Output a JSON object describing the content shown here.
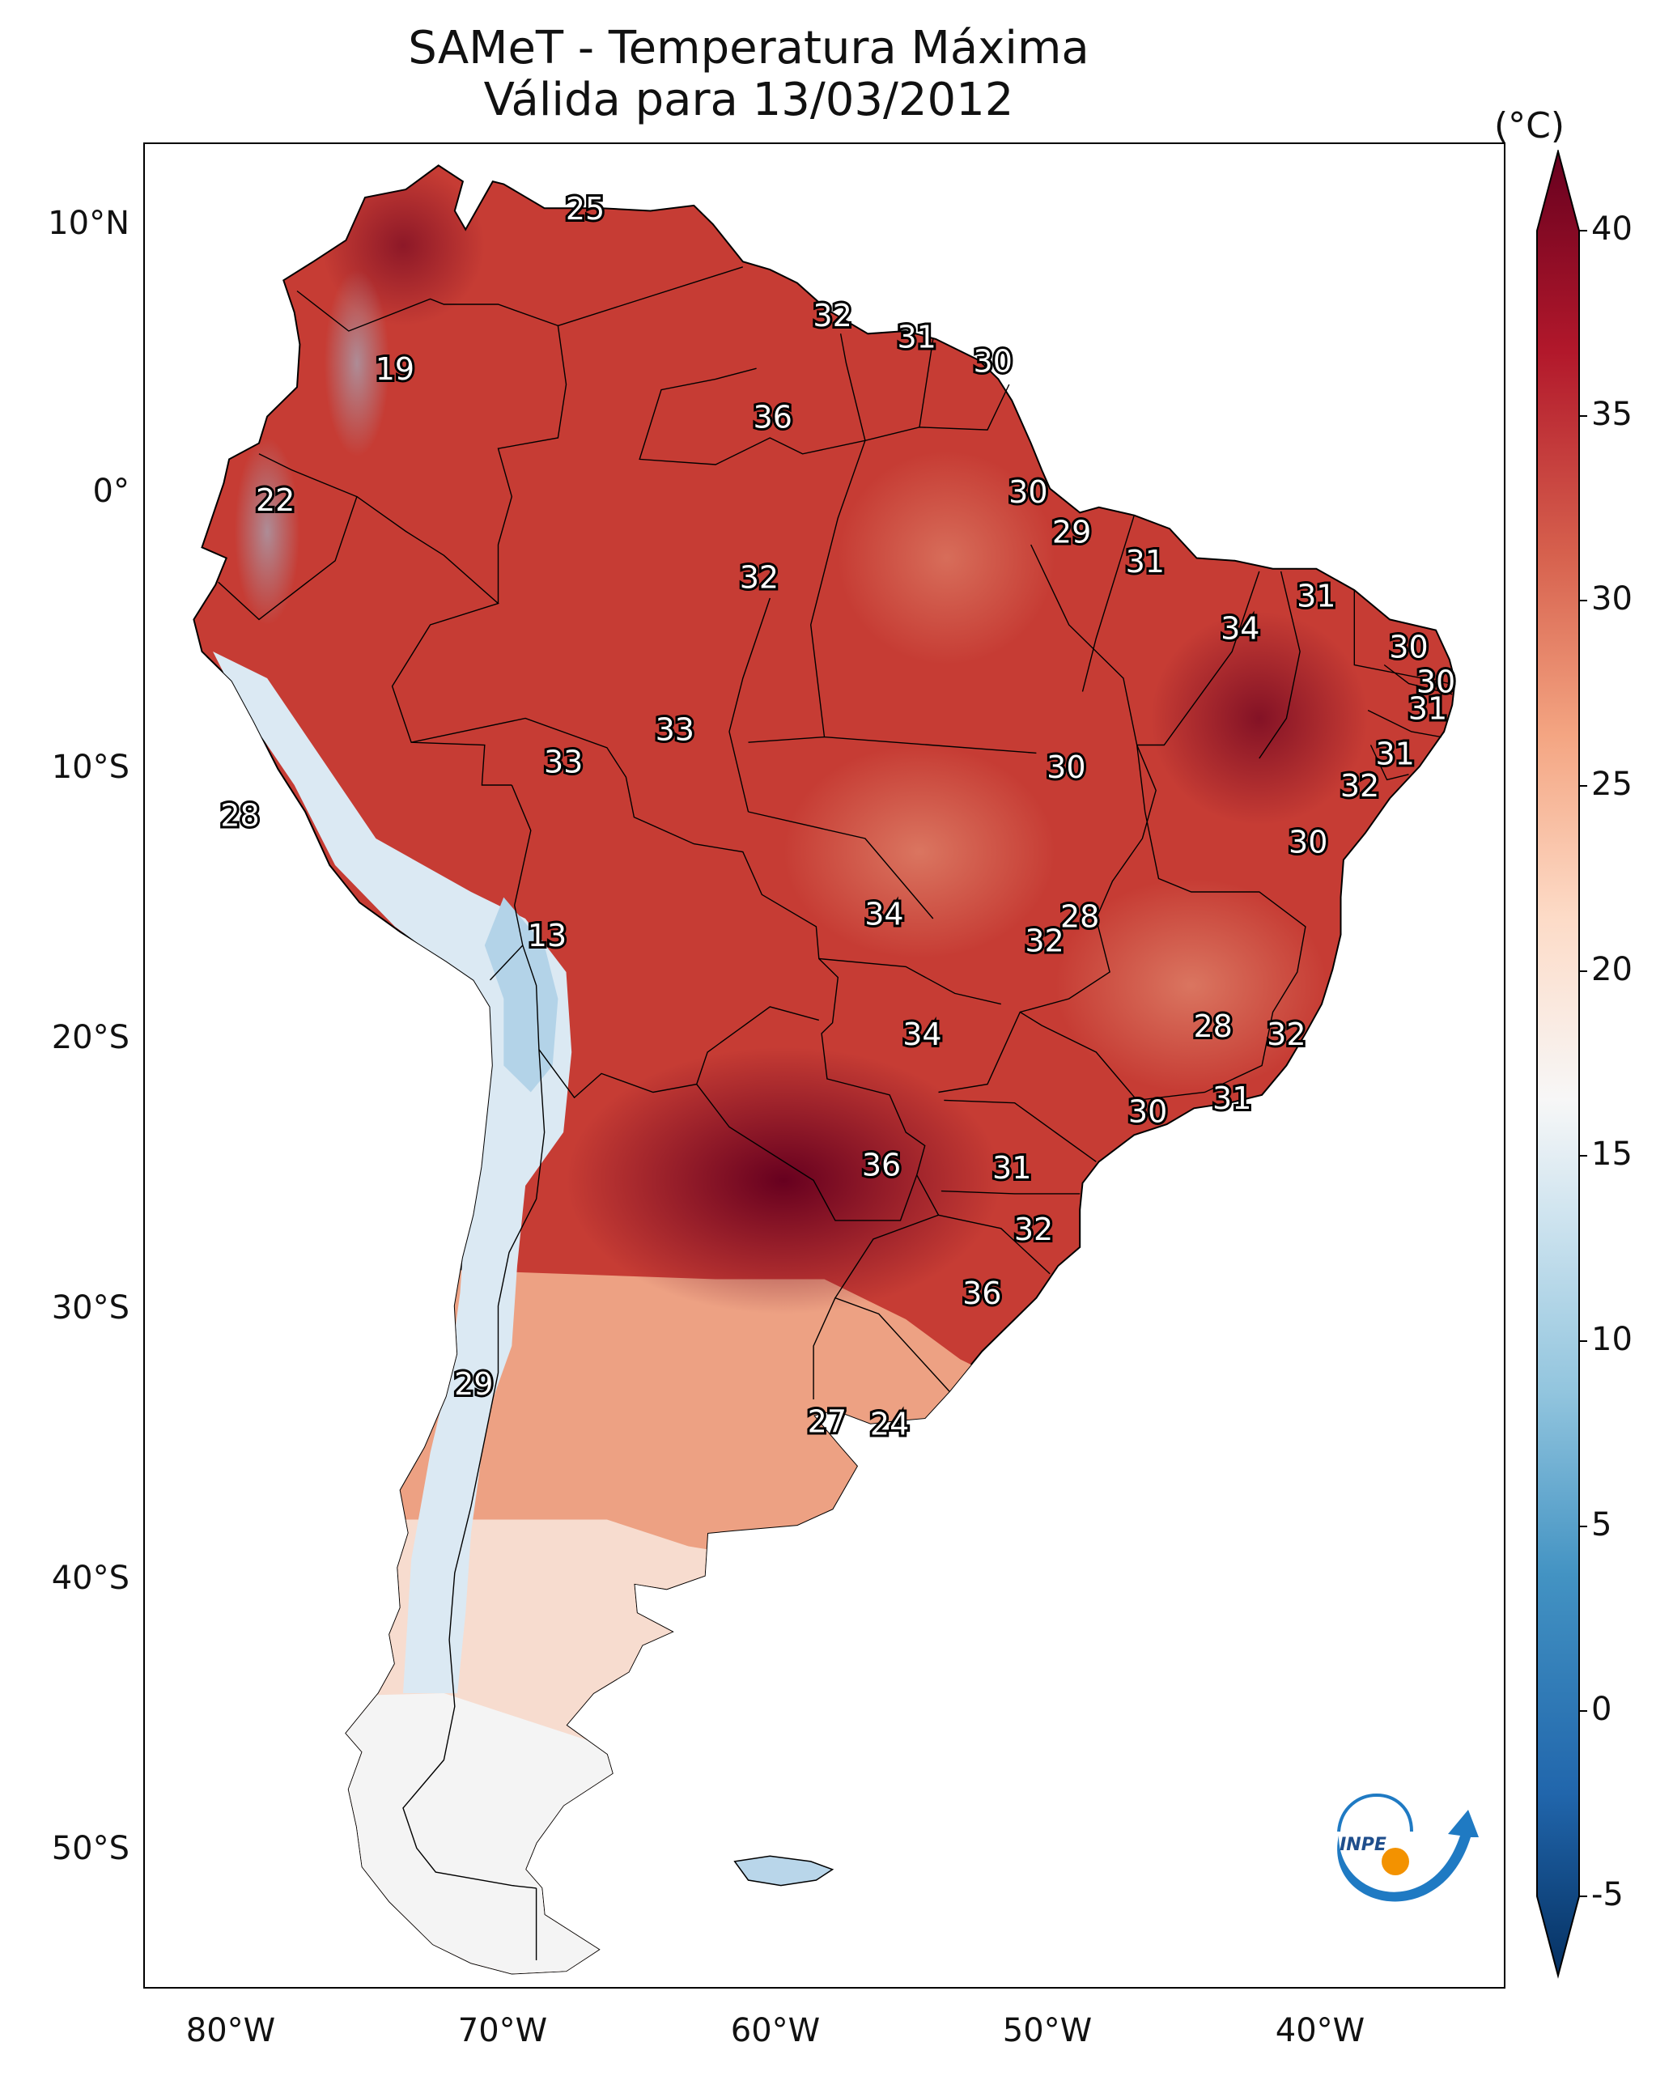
{
  "title": "SAMeT - Temperatura Máxima",
  "subtitle": "Válida para 13/03/2012",
  "colorbar": {
    "unit": "(°C)",
    "ticks": [
      "40",
      "35",
      "30",
      "25",
      "20",
      "15",
      "10",
      "5",
      "0",
      "-5"
    ],
    "range": [
      -5,
      40
    ],
    "extend": "both",
    "colors": [
      "#053061",
      "#2166ac",
      "#4393c3",
      "#92c5de",
      "#d1e5f0",
      "#f7f7f7",
      "#fddbc7",
      "#f4a582",
      "#d6604d",
      "#b2182b",
      "#67001f"
    ]
  },
  "axes": {
    "lat_labels": [
      "10°N",
      "0°",
      "10°S",
      "20°S",
      "30°S",
      "40°S",
      "50°S"
    ],
    "lon_labels": [
      "80°W",
      "70°W",
      "60°W",
      "50°W",
      "40°W"
    ],
    "lon_range": [
      -83,
      -33
    ],
    "lat_range": [
      -56,
      13
    ]
  },
  "chart_data": {
    "type": "heatmap",
    "title": "SAMeT - Temperatura Máxima",
    "subtitle": "Válida para 13/03/2012",
    "variable": "Temperatura Máxima",
    "unit": "°C",
    "date": "13/03/2012",
    "color_range": [
      -5,
      40
    ],
    "annotations": [
      {
        "value": "25",
        "lon": -66.8,
        "lat": 10.6
      },
      {
        "value": "32",
        "lon": -57.7,
        "lat": 6.6
      },
      {
        "value": "31",
        "lon": -54.6,
        "lat": 5.8
      },
      {
        "value": "30",
        "lon": -51.8,
        "lat": 4.9
      },
      {
        "value": "19",
        "lon": -73.8,
        "lat": 4.6
      },
      {
        "value": "36",
        "lon": -59.9,
        "lat": 2.8
      },
      {
        "value": "22",
        "lon": -78.2,
        "lat": -0.3
      },
      {
        "value": "30",
        "lon": -50.5,
        "lat": 0.0
      },
      {
        "value": "29",
        "lon": -48.9,
        "lat": -1.5
      },
      {
        "value": "32",
        "lon": -60.4,
        "lat": -3.2
      },
      {
        "value": "31",
        "lon": -46.2,
        "lat": -2.6
      },
      {
        "value": "31",
        "lon": -39.9,
        "lat": -3.9
      },
      {
        "value": "34",
        "lon": -42.7,
        "lat": -5.1
      },
      {
        "value": "30",
        "lon": -36.5,
        "lat": -5.8
      },
      {
        "value": "30",
        "lon": -35.5,
        "lat": -7.1
      },
      {
        "value": "31",
        "lon": -35.8,
        "lat": -8.1
      },
      {
        "value": "33",
        "lon": -63.5,
        "lat": -8.9
      },
      {
        "value": "31",
        "lon": -37.0,
        "lat": -9.8
      },
      {
        "value": "33",
        "lon": -67.6,
        "lat": -10.1
      },
      {
        "value": "30",
        "lon": -49.1,
        "lat": -10.3
      },
      {
        "value": "32",
        "lon": -38.3,
        "lat": -11.0
      },
      {
        "value": "28",
        "lon": -79.5,
        "lat": -12.1
      },
      {
        "value": "30",
        "lon": -40.2,
        "lat": -13.1
      },
      {
        "value": "34",
        "lon": -55.8,
        "lat": -15.8
      },
      {
        "value": "28",
        "lon": -48.6,
        "lat": -15.9
      },
      {
        "value": "32",
        "lon": -49.9,
        "lat": -16.8
      },
      {
        "value": "13",
        "lon": -68.2,
        "lat": -16.6
      },
      {
        "value": "28",
        "lon": -43.7,
        "lat": -20.0
      },
      {
        "value": "34",
        "lon": -54.4,
        "lat": -20.3
      },
      {
        "value": "32",
        "lon": -41.0,
        "lat": -20.3
      },
      {
        "value": "31",
        "lon": -43.0,
        "lat": -22.7
      },
      {
        "value": "30",
        "lon": -46.1,
        "lat": -23.2
      },
      {
        "value": "36",
        "lon": -55.9,
        "lat": -25.2
      },
      {
        "value": "31",
        "lon": -51.1,
        "lat": -25.3
      },
      {
        "value": "32",
        "lon": -50.3,
        "lat": -27.6
      },
      {
        "value": "36",
        "lon": -52.2,
        "lat": -30.0
      },
      {
        "value": "29",
        "lon": -70.9,
        "lat": -33.4
      },
      {
        "value": "27",
        "lon": -57.9,
        "lat": -34.8
      },
      {
        "value": "24",
        "lon": -55.6,
        "lat": -34.9
      }
    ],
    "logo": "INPE"
  }
}
